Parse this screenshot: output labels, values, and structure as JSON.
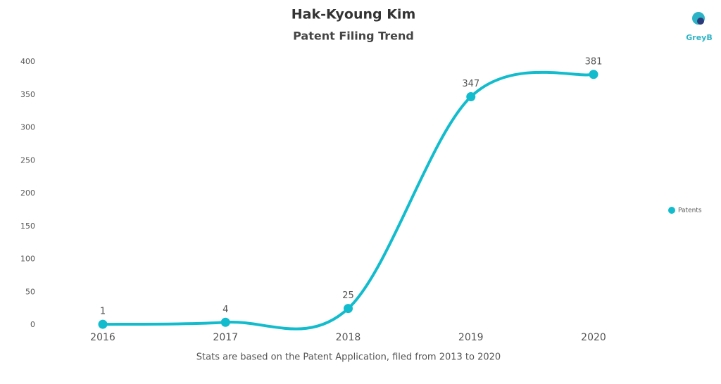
{
  "logo": "GreyB",
  "chart_data": {
    "type": "line",
    "title": "Hak-Kyoung Kim",
    "subtitle": "Patent Filing Trend",
    "note": "Stats are based on the Patent Application, filed from 2013 to 2020",
    "categories": [
      "2016",
      "2017",
      "2018",
      "2019",
      "2020"
    ],
    "series": [
      {
        "name": "Patents",
        "color": "#12bccd",
        "values": [
          1,
          4,
          25,
          347,
          381
        ]
      }
    ],
    "ylim": [
      0,
      400
    ],
    "yticks": [
      0,
      50,
      100,
      150,
      200,
      250,
      300,
      350,
      400
    ],
    "legend": "right",
    "data_labels": true,
    "smooth": true
  }
}
